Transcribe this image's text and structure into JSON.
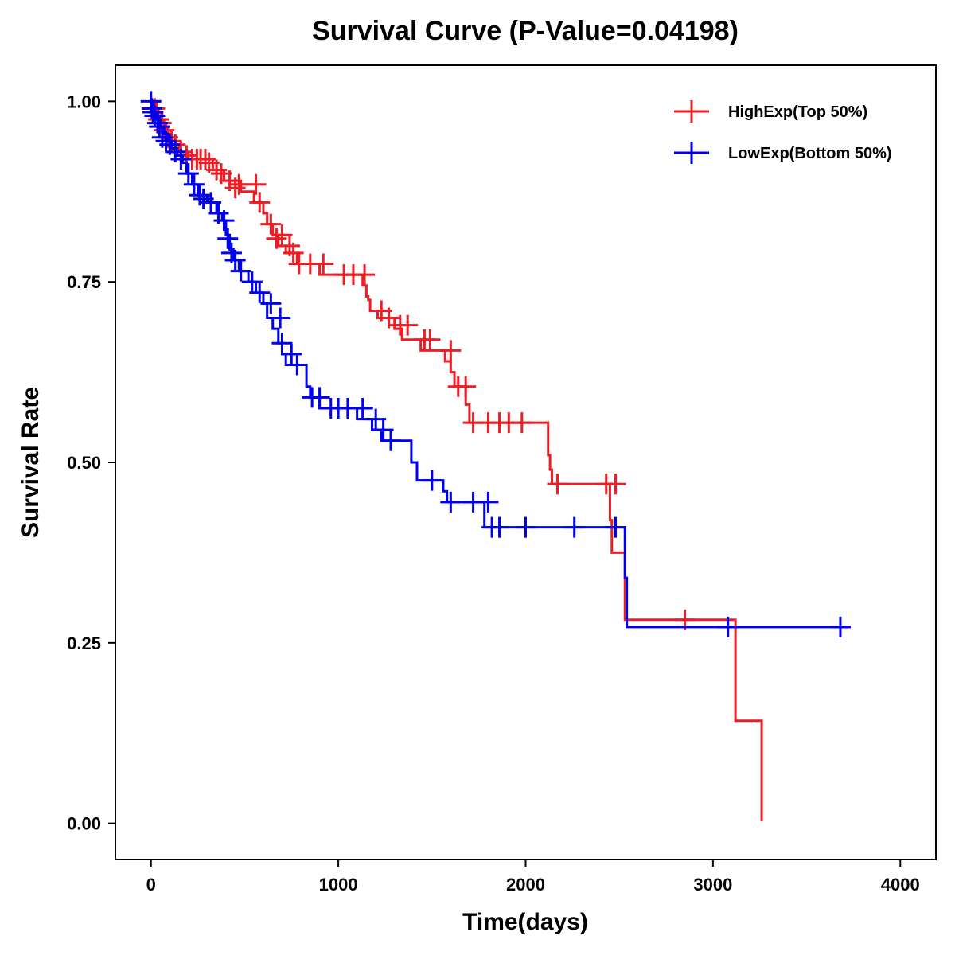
{
  "chart_data": {
    "type": "line",
    "subtype": "kaplan-meier step",
    "title": "Survival Curve (P-Value=0.04198)",
    "xlabel": "Time(days)",
    "ylabel": "Survival Rate",
    "xlim": [
      -190,
      4190
    ],
    "ylim": [
      -0.05,
      1.05
    ],
    "xticks": [
      0,
      1000,
      2000,
      3000,
      4000
    ],
    "xtick_labels": [
      "0",
      "1000",
      "2000",
      "3000",
      "4000"
    ],
    "yticks": [
      0,
      0.25,
      0.5,
      0.75,
      1.0
    ],
    "ytick_labels": [
      "0.00",
      "0.25",
      "0.50",
      "0.75",
      "1.00"
    ],
    "grid": false,
    "legend_position": "top-right",
    "series": [
      {
        "name": "HighExp(Top 50%)",
        "color": "#ee1c24",
        "steps": [
          [
            0,
            1.0
          ],
          [
            30,
            0.985
          ],
          [
            60,
            0.97
          ],
          [
            80,
            0.955
          ],
          [
            100,
            0.94
          ],
          [
            150,
            0.93
          ],
          [
            200,
            0.92
          ],
          [
            330,
            0.905
          ],
          [
            390,
            0.89
          ],
          [
            480,
            0.875
          ],
          [
            550,
            0.86
          ],
          [
            600,
            0.845
          ],
          [
            620,
            0.83
          ],
          [
            650,
            0.815
          ],
          [
            680,
            0.8
          ],
          [
            720,
            0.79
          ],
          [
            780,
            0.775
          ],
          [
            900,
            0.76
          ],
          [
            1130,
            0.745
          ],
          [
            1150,
            0.73
          ],
          [
            1160,
            0.725
          ],
          [
            1170,
            0.71
          ],
          [
            1210,
            0.7
          ],
          [
            1300,
            0.685
          ],
          [
            1340,
            0.67
          ],
          [
            1440,
            0.655
          ],
          [
            1570,
            0.64
          ],
          [
            1600,
            0.625
          ],
          [
            1620,
            0.605
          ],
          [
            1680,
            0.58
          ],
          [
            1700,
            0.555
          ],
          [
            2120,
            0.51
          ],
          [
            2130,
            0.49
          ],
          [
            2140,
            0.47
          ],
          [
            2450,
            0.42
          ],
          [
            2460,
            0.375
          ],
          [
            2530,
            0.282
          ],
          [
            3120,
            0.142
          ],
          [
            3260,
            0.003
          ]
        ],
        "end_x": 3260,
        "censored": [
          [
            5,
            0.99
          ],
          [
            20,
            0.99
          ],
          [
            40,
            0.975
          ],
          [
            55,
            0.97
          ],
          [
            70,
            0.96
          ],
          [
            90,
            0.95
          ],
          [
            110,
            0.945
          ],
          [
            130,
            0.94
          ],
          [
            160,
            0.93
          ],
          [
            190,
            0.925
          ],
          [
            220,
            0.92
          ],
          [
            245,
            0.92
          ],
          [
            265,
            0.92
          ],
          [
            290,
            0.92
          ],
          [
            310,
            0.915
          ],
          [
            350,
            0.905
          ],
          [
            375,
            0.9
          ],
          [
            420,
            0.89
          ],
          [
            450,
            0.88
          ],
          [
            470,
            0.885
          ],
          [
            560,
            0.885
          ],
          [
            580,
            0.86
          ],
          [
            640,
            0.83
          ],
          [
            670,
            0.81
          ],
          [
            700,
            0.815
          ],
          [
            740,
            0.8
          ],
          [
            760,
            0.79
          ],
          [
            790,
            0.775
          ],
          [
            850,
            0.775
          ],
          [
            920,
            0.775
          ],
          [
            1030,
            0.76
          ],
          [
            1080,
            0.76
          ],
          [
            1140,
            0.76
          ],
          [
            1230,
            0.71
          ],
          [
            1270,
            0.7
          ],
          [
            1330,
            0.69
          ],
          [
            1370,
            0.69
          ],
          [
            1460,
            0.67
          ],
          [
            1490,
            0.67
          ],
          [
            1600,
            0.655
          ],
          [
            1640,
            0.605
          ],
          [
            1680,
            0.605
          ],
          [
            1720,
            0.555
          ],
          [
            1800,
            0.555
          ],
          [
            1860,
            0.555
          ],
          [
            1910,
            0.555
          ],
          [
            1980,
            0.555
          ],
          [
            2170,
            0.47
          ],
          [
            2430,
            0.47
          ],
          [
            2480,
            0.47
          ],
          [
            2850,
            0.282
          ]
        ]
      },
      {
        "name": "LowExp(Bottom 50%)",
        "color": "#0000ee",
        "steps": [
          [
            0,
            1.0
          ],
          [
            15,
            0.985
          ],
          [
            30,
            0.975
          ],
          [
            50,
            0.965
          ],
          [
            70,
            0.955
          ],
          [
            90,
            0.945
          ],
          [
            110,
            0.935
          ],
          [
            140,
            0.925
          ],
          [
            170,
            0.915
          ],
          [
            190,
            0.9
          ],
          [
            220,
            0.885
          ],
          [
            250,
            0.87
          ],
          [
            300,
            0.86
          ],
          [
            350,
            0.845
          ],
          [
            380,
            0.835
          ],
          [
            400,
            0.815
          ],
          [
            420,
            0.795
          ],
          [
            440,
            0.78
          ],
          [
            470,
            0.765
          ],
          [
            520,
            0.75
          ],
          [
            560,
            0.735
          ],
          [
            600,
            0.72
          ],
          [
            620,
            0.7
          ],
          [
            650,
            0.685
          ],
          [
            680,
            0.665
          ],
          [
            700,
            0.65
          ],
          [
            720,
            0.635
          ],
          [
            830,
            0.605
          ],
          [
            850,
            0.59
          ],
          [
            900,
            0.575
          ],
          [
            1100,
            0.56
          ],
          [
            1180,
            0.545
          ],
          [
            1230,
            0.53
          ],
          [
            1390,
            0.5
          ],
          [
            1420,
            0.475
          ],
          [
            1560,
            0.46
          ],
          [
            1580,
            0.445
          ],
          [
            1780,
            0.41
          ],
          [
            2530,
            0.34
          ],
          [
            2540,
            0.272
          ]
        ],
        "end_x": 3720,
        "censored": [
          [
            0,
            1.0
          ],
          [
            5,
            0.99
          ],
          [
            10,
            0.985
          ],
          [
            20,
            0.98
          ],
          [
            35,
            0.97
          ],
          [
            45,
            0.965
          ],
          [
            60,
            0.95
          ],
          [
            80,
            0.945
          ],
          [
            100,
            0.94
          ],
          [
            130,
            0.93
          ],
          [
            160,
            0.92
          ],
          [
            200,
            0.9
          ],
          [
            230,
            0.885
          ],
          [
            260,
            0.87
          ],
          [
            280,
            0.865
          ],
          [
            320,
            0.86
          ],
          [
            360,
            0.845
          ],
          [
            390,
            0.835
          ],
          [
            410,
            0.81
          ],
          [
            430,
            0.79
          ],
          [
            450,
            0.78
          ],
          [
            480,
            0.765
          ],
          [
            540,
            0.75
          ],
          [
            580,
            0.735
          ],
          [
            640,
            0.72
          ],
          [
            690,
            0.7
          ],
          [
            700,
            0.665
          ],
          [
            750,
            0.65
          ],
          [
            780,
            0.635
          ],
          [
            860,
            0.59
          ],
          [
            900,
            0.59
          ],
          [
            960,
            0.575
          ],
          [
            1000,
            0.575
          ],
          [
            1050,
            0.575
          ],
          [
            1130,
            0.575
          ],
          [
            1200,
            0.56
          ],
          [
            1240,
            0.545
          ],
          [
            1280,
            0.53
          ],
          [
            1500,
            0.475
          ],
          [
            1600,
            0.445
          ],
          [
            1720,
            0.445
          ],
          [
            1800,
            0.445
          ],
          [
            1820,
            0.41
          ],
          [
            1860,
            0.41
          ],
          [
            2000,
            0.41
          ],
          [
            2260,
            0.41
          ],
          [
            2480,
            0.41
          ],
          [
            3080,
            0.272
          ],
          [
            3680,
            0.272
          ]
        ]
      }
    ]
  }
}
